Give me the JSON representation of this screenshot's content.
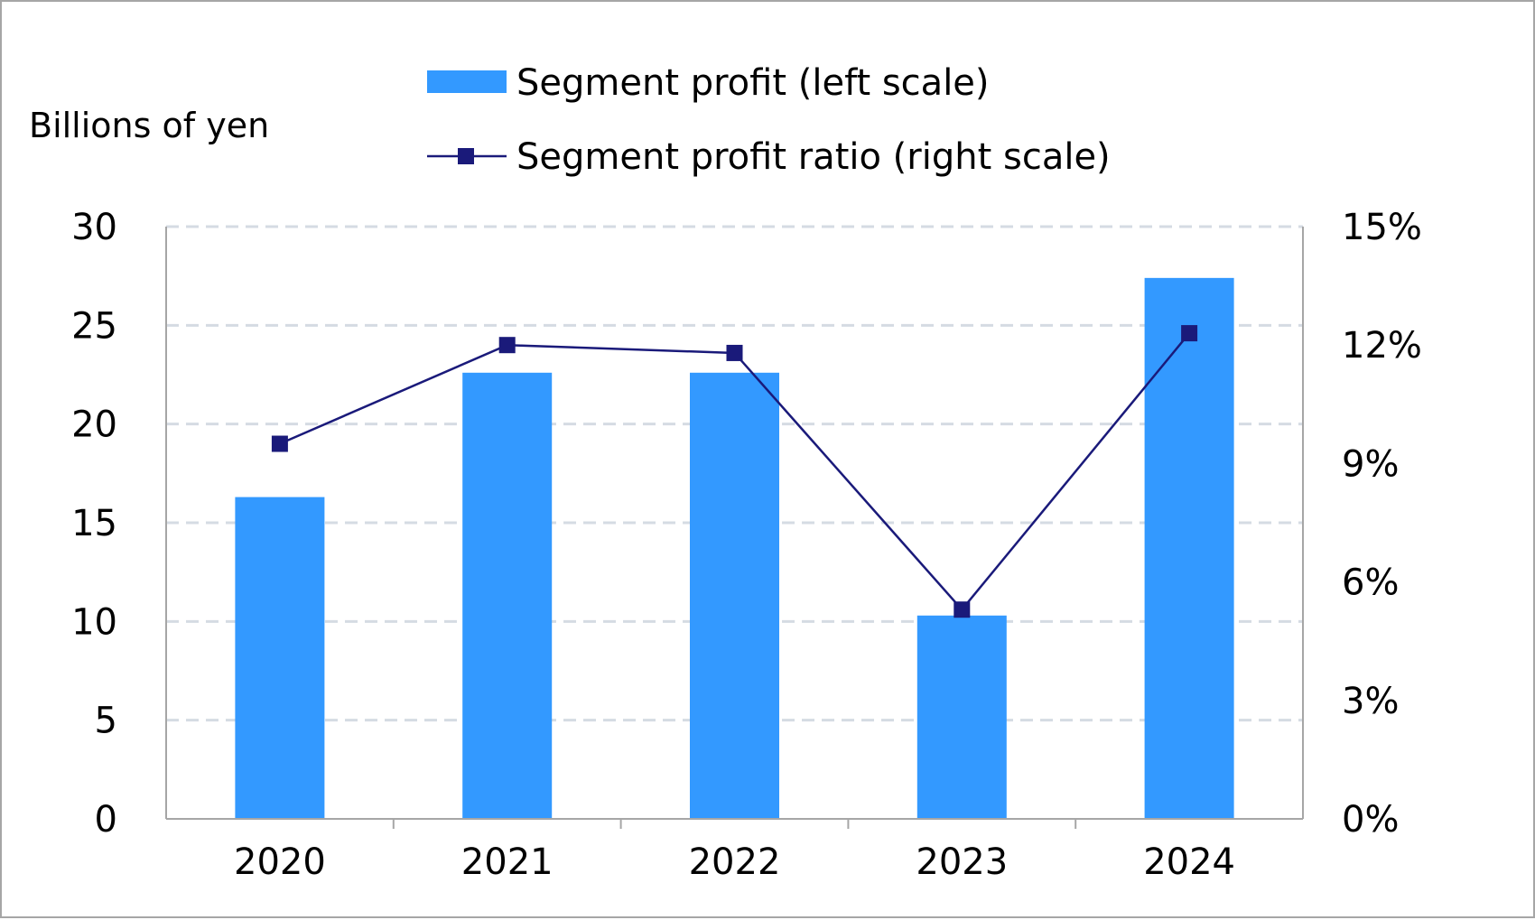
{
  "chart_data": {
    "type": "bar",
    "categories": [
      "2020",
      "2021",
      "2022",
      "2023",
      "2024"
    ],
    "series": [
      {
        "name": "Segment profit (left scale)",
        "kind": "bar",
        "axis": "left",
        "color": "#3399ff",
        "values": [
          16.3,
          22.6,
          22.6,
          10.3,
          27.4
        ]
      },
      {
        "name": "Segment profit ratio (right scale)",
        "kind": "line",
        "axis": "right",
        "color": "#1a1a7a",
        "marker": "square",
        "values": [
          9.5,
          12.0,
          11.8,
          5.3,
          12.3
        ]
      }
    ],
    "ylabel": "Billions of yen",
    "ylim": [
      0,
      30
    ],
    "yticks": [
      "0",
      "5",
      "10",
      "15",
      "20",
      "25",
      "30"
    ],
    "y2lim": [
      0,
      15
    ],
    "y2ticks": [
      "0%",
      "3%",
      "6%",
      "9%",
      "12%",
      "15%"
    ],
    "grid": true,
    "legend_position": "top-center"
  }
}
